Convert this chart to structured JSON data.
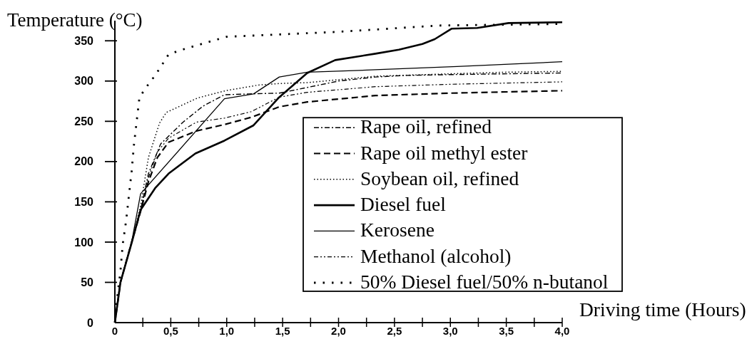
{
  "chart_data": {
    "type": "line",
    "xlabel": "Driving time (Hours)",
    "ylabel": "Temperature (°C)",
    "xlim": [
      0,
      4
    ],
    "ylim": [
      0,
      375
    ],
    "xticks": [
      0,
      {
        "value": 0.25,
        "label": null
      },
      {
        "value": 0.5,
        "label": "0,5"
      },
      {
        "value": 0.75,
        "label": null
      },
      {
        "value": 1,
        "label": "1,0"
      },
      {
        "value": 1.25,
        "label": null
      },
      {
        "value": 1.5,
        "label": "1,5"
      },
      {
        "value": 1.75,
        "label": null
      },
      {
        "value": 2,
        "label": "2,0"
      },
      {
        "value": 2.25,
        "label": null
      },
      {
        "value": 2.5,
        "label": "2,5"
      },
      {
        "value": 2.75,
        "label": null
      },
      {
        "value": 3,
        "label": "3,0"
      },
      {
        "value": 3.25,
        "label": null
      },
      {
        "value": 3.5,
        "label": "3,5"
      },
      {
        "value": 3.75,
        "label": null
      },
      {
        "value": 4,
        "label": "4,0"
      }
    ],
    "yticks": [
      0,
      50,
      100,
      150,
      200,
      250,
      300,
      350
    ],
    "legend": "bottom right",
    "series": [
      {
        "name": "Rape oil, refined",
        "color": "#000000",
        "line_style": "dashed",
        "x": [
          0,
          0.05,
          0.15,
          0.23,
          0.3,
          0.41,
          0.61,
          0.79,
          0.98,
          1.2,
          1.47,
          1.72,
          2.0,
          2.33,
          2.6,
          3.0,
          3.5,
          4.0
        ],
        "values": [
          0,
          50,
          100,
          140,
          185,
          222,
          249,
          269,
          283,
          284,
          285,
          292,
          300,
          305,
          307,
          308,
          309,
          310
        ]
      },
      {
        "name": "Rape oil methyl ester",
        "color": "#000000",
        "line_style": "dashed",
        "x": [
          0,
          0.05,
          0.15,
          0.23,
          0.3,
          0.38,
          0.48,
          0.73,
          0.98,
          1.22,
          1.47,
          1.72,
          2.33,
          3.0,
          4.0
        ],
        "values": [
          0,
          50,
          100,
          138,
          175,
          205,
          224,
          238,
          246,
          255,
          268,
          274,
          282,
          285,
          288
        ]
      },
      {
        "name": "Soybean oil, refined",
        "color": "#000000",
        "line_style": "dotted",
        "x": [
          0,
          0.05,
          0.15,
          0.23,
          0.3,
          0.4,
          0.46,
          0.74,
          0.99,
          1.28,
          1.48,
          1.72,
          2.33,
          3.0,
          3.5,
          4.0
        ],
        "values": [
          0,
          50,
          100,
          145,
          205,
          248,
          261,
          279,
          288,
          295,
          297,
          298,
          306,
          309,
          311,
          312
        ]
      },
      {
        "name": "Diesel fuel",
        "color": "#000000",
        "line_style": "solid",
        "x": [
          0,
          0.05,
          0.15,
          0.23,
          0.36,
          0.48,
          0.72,
          0.98,
          1.24,
          1.47,
          1.72,
          1.97,
          2.33,
          2.54,
          2.75,
          2.86,
          3.01,
          3.24,
          3.52,
          4.0
        ],
        "values": [
          0,
          50,
          99,
          140,
          167,
          185,
          210,
          226,
          245,
          280,
          310,
          326,
          334,
          339,
          346,
          352,
          365,
          366,
          372,
          373
        ]
      },
      {
        "name": "Kerosene",
        "color": "#000000",
        "line_style": "solid",
        "x": [
          0,
          0.05,
          0.15,
          0.23,
          0.98,
          1.24,
          1.47,
          1.72,
          2.33,
          3.06,
          3.7,
          4.0
        ],
        "values": [
          0,
          50,
          100,
          160,
          278,
          284,
          305,
          311,
          314,
          318,
          322,
          324
        ]
      },
      {
        "name": "Methanol (alcohol)",
        "color": "#000000",
        "line_style": "dashed",
        "x": [
          0,
          0.05,
          0.15,
          0.23,
          0.3,
          0.38,
          0.48,
          0.73,
          0.98,
          1.22,
          1.47,
          1.72,
          2.33,
          3.0,
          4.0
        ],
        "values": [
          0,
          50,
          100,
          140,
          180,
          212,
          229,
          249,
          254,
          262,
          280,
          286,
          293,
          296,
          299
        ]
      },
      {
        "name": "50% Diesel fuel/50% n-butanol",
        "color": "#000000",
        "line_style": "dotted",
        "x": [
          0,
          0.02,
          0.05,
          0.07,
          0.1,
          0.15,
          0.17,
          0.22,
          0.3,
          0.36,
          0.43,
          0.48,
          0.58,
          0.75,
          1.0,
          1.49,
          1.98,
          2.33,
          2.9,
          3.5,
          4.0
        ],
        "values": [
          0,
          30,
          64,
          97,
          126,
          188,
          220,
          280,
          296,
          307,
          322,
          333,
          338,
          345,
          355,
          358,
          361,
          364,
          369,
          370,
          371
        ]
      }
    ]
  }
}
